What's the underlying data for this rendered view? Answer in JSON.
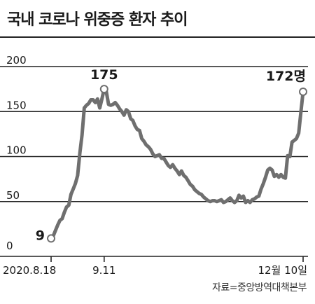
{
  "header": {
    "title": "국내 코로나 위중증 환자 추이"
  },
  "source": "자료=중앙방역대책본부",
  "colors": {
    "line": "#6f6f6f",
    "grid": "#222222",
    "axis": "#222222",
    "text": "#1a1a1a",
    "marker_fill": "#ffffff"
  },
  "chart_data": {
    "type": "line",
    "title": "국내 코로나 위중증 환자 추이",
    "xlabel": "",
    "ylabel": "",
    "ylim": [
      0,
      200
    ],
    "xlim": [
      "2020-08-18",
      "2020-12-10"
    ],
    "yticks": [
      0,
      50,
      100,
      150,
      200
    ],
    "xtick_labels": [
      {
        "date": "2020-08-18",
        "label": "2020.8.18"
      },
      {
        "date": "2020-09-11",
        "label": "9.11"
      },
      {
        "date": "2020-12-10",
        "label": "12월 10일"
      }
    ],
    "grid": true,
    "series": [
      {
        "points": [
          [
            "2020-08-18",
            9
          ],
          [
            "2020-08-19",
            12
          ],
          [
            "2020-08-20",
            18
          ],
          [
            "2020-08-21",
            24
          ],
          [
            "2020-08-22",
            29
          ],
          [
            "2020-08-23",
            31
          ],
          [
            "2020-08-24",
            38
          ],
          [
            "2020-08-25",
            44
          ],
          [
            "2020-08-26",
            46
          ],
          [
            "2020-08-27",
            58
          ],
          [
            "2020-08-28",
            64
          ],
          [
            "2020-08-29",
            70
          ],
          [
            "2020-08-30",
            79
          ],
          [
            "2020-08-31",
            104
          ],
          [
            "2020-09-01",
            124
          ],
          [
            "2020-09-02",
            154
          ],
          [
            "2020-09-03",
            157
          ],
          [
            "2020-09-04",
            159
          ],
          [
            "2020-09-05",
            163
          ],
          [
            "2020-09-06",
            163
          ],
          [
            "2020-09-07",
            160
          ],
          [
            "2020-09-08",
            164
          ],
          [
            "2020-09-09",
            154
          ],
          [
            "2020-09-10",
            164
          ],
          [
            "2020-09-11",
            175
          ],
          [
            "2020-09-12",
            172
          ],
          [
            "2020-09-13",
            158
          ],
          [
            "2020-09-14",
            157
          ],
          [
            "2020-09-15",
            158
          ],
          [
            "2020-09-16",
            160
          ],
          [
            "2020-09-17",
            157
          ],
          [
            "2020-09-18",
            153
          ],
          [
            "2020-09-19",
            150
          ],
          [
            "2020-09-20",
            146
          ],
          [
            "2020-09-21",
            152
          ],
          [
            "2020-09-22",
            150
          ],
          [
            "2020-09-23",
            142
          ],
          [
            "2020-09-24",
            140
          ],
          [
            "2020-09-25",
            134
          ],
          [
            "2020-09-26",
            130
          ],
          [
            "2020-09-27",
            129
          ],
          [
            "2020-09-28",
            120
          ],
          [
            "2020-09-29",
            117
          ],
          [
            "2020-09-30",
            113
          ],
          [
            "2020-10-01",
            111
          ],
          [
            "2020-10-02",
            108
          ],
          [
            "2020-10-03",
            103
          ],
          [
            "2020-10-04",
            100
          ],
          [
            "2020-10-05",
            101
          ],
          [
            "2020-10-06",
            102
          ],
          [
            "2020-10-07",
            98
          ],
          [
            "2020-10-08",
            98
          ],
          [
            "2020-10-09",
            94
          ],
          [
            "2020-10-10",
            90
          ],
          [
            "2020-10-11",
            88
          ],
          [
            "2020-10-12",
            91
          ],
          [
            "2020-10-13",
            87
          ],
          [
            "2020-10-14",
            84
          ],
          [
            "2020-10-15",
            80
          ],
          [
            "2020-10-16",
            84
          ],
          [
            "2020-10-17",
            79
          ],
          [
            "2020-10-18",
            77
          ],
          [
            "2020-10-19",
            73
          ],
          [
            "2020-10-20",
            69
          ],
          [
            "2020-10-21",
            67
          ],
          [
            "2020-10-22",
            63
          ],
          [
            "2020-10-23",
            61
          ],
          [
            "2020-10-24",
            59
          ],
          [
            "2020-10-25",
            58
          ],
          [
            "2020-10-26",
            55
          ],
          [
            "2020-10-27",
            53
          ],
          [
            "2020-10-28",
            51
          ],
          [
            "2020-10-29",
            50
          ],
          [
            "2020-10-30",
            51
          ],
          [
            "2020-10-31",
            51
          ],
          [
            "2020-11-01",
            50
          ],
          [
            "2020-11-02",
            51
          ],
          [
            "2020-11-03",
            52
          ],
          [
            "2020-11-04",
            49
          ],
          [
            "2020-11-05",
            50
          ],
          [
            "2020-11-06",
            52
          ],
          [
            "2020-11-07",
            54
          ],
          [
            "2020-11-08",
            51
          ],
          [
            "2020-11-09",
            49
          ],
          [
            "2020-11-10",
            51
          ],
          [
            "2020-11-11",
            57
          ],
          [
            "2020-11-12",
            54
          ],
          [
            "2020-11-13",
            56
          ],
          [
            "2020-11-14",
            49
          ],
          [
            "2020-11-15",
            51
          ],
          [
            "2020-11-16",
            49
          ],
          [
            "2020-11-17",
            52
          ],
          [
            "2020-11-18",
            53
          ],
          [
            "2020-11-19",
            55
          ],
          [
            "2020-11-20",
            56
          ],
          [
            "2020-11-21",
            64
          ],
          [
            "2020-11-22",
            70
          ],
          [
            "2020-11-23",
            77
          ],
          [
            "2020-11-24",
            85
          ],
          [
            "2020-11-25",
            87
          ],
          [
            "2020-11-26",
            85
          ],
          [
            "2020-11-27",
            78
          ],
          [
            "2020-11-28",
            80
          ],
          [
            "2020-11-29",
            77
          ],
          [
            "2020-11-30",
            80
          ],
          [
            "2020-12-01",
            77
          ],
          [
            "2020-12-02",
            76
          ],
          [
            "2020-12-03",
            101
          ],
          [
            "2020-12-04",
            100
          ],
          [
            "2020-12-05",
            116
          ],
          [
            "2020-12-06",
            118
          ],
          [
            "2020-12-07",
            120
          ],
          [
            "2020-12-08",
            126
          ],
          [
            "2020-12-09",
            149
          ],
          [
            "2020-12-10",
            172
          ]
        ]
      }
    ],
    "annotations": [
      {
        "date": "2020-08-18",
        "value": 9,
        "label": "9"
      },
      {
        "date": "2020-09-11",
        "value": 175,
        "label": "175"
      },
      {
        "date": "2020-12-10",
        "value": 172,
        "label": "172명"
      }
    ]
  }
}
